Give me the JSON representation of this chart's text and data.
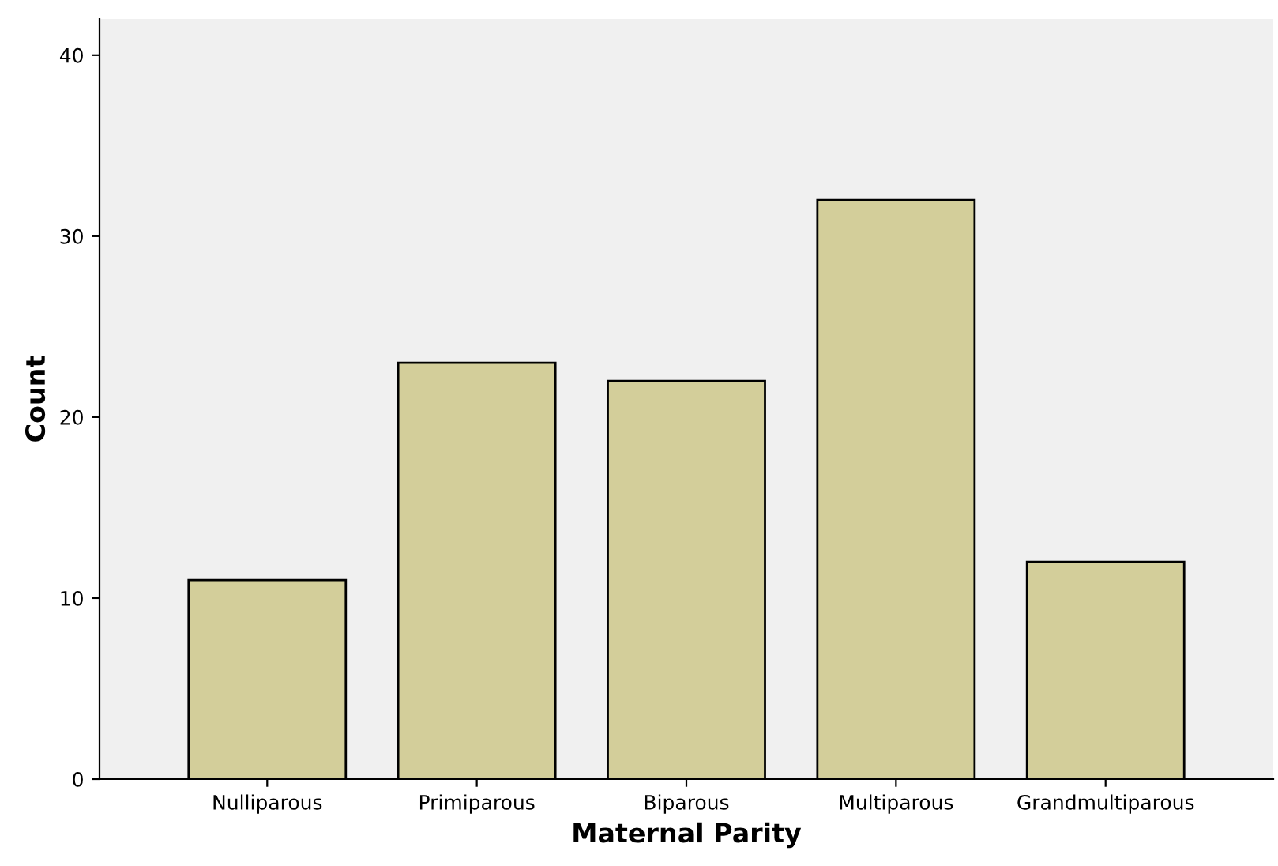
{
  "chart_data": {
    "type": "bar",
    "xlabel": "Maternal Parity",
    "ylabel": "Count",
    "categories": [
      "Nulliparous",
      "Primiparous",
      "Biparous",
      "Multiparous",
      "Grandmultiparous"
    ],
    "values": [
      11,
      23,
      22,
      32,
      12
    ],
    "color": "#d3ce9a",
    "ylim": [
      0,
      42
    ],
    "yticks": [
      0,
      10,
      20,
      30,
      40
    ],
    "grid": false
  }
}
